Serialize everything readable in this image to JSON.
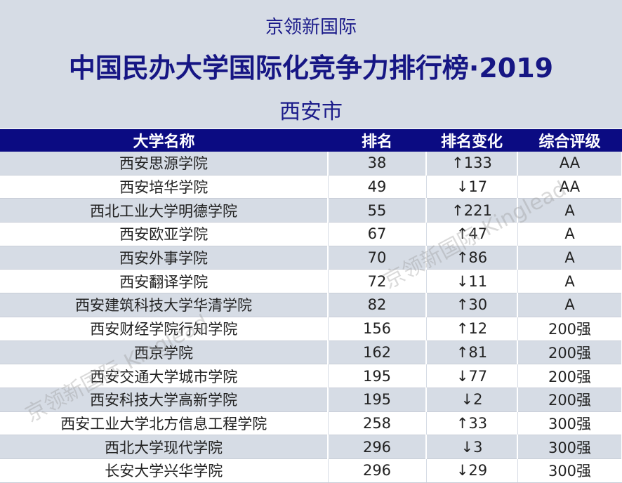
{
  "header": {
    "org": "京领新国际",
    "title": "中国民办大学国际化竞争力排行榜·2019",
    "city": "西安市"
  },
  "watermark": "京领新国际 Kinglead",
  "table": {
    "columns": [
      "大学名称",
      "排名",
      "排名变化",
      "综合评级"
    ],
    "rows": [
      [
        "西安思源学院",
        "38",
        "↑133",
        "AA"
      ],
      [
        "西安培华学院",
        "49",
        "↓17",
        "AA"
      ],
      [
        "西北工业大学明德学院",
        "55",
        "↑221",
        "A"
      ],
      [
        "西安欧亚学院",
        "67",
        "↑47",
        "A"
      ],
      [
        "西安外事学院",
        "70",
        "↑86",
        "A"
      ],
      [
        "西安翻译学院",
        "72",
        "↓11",
        "A"
      ],
      [
        "西安建筑科技大学华清学院",
        "82",
        "↑30",
        "A"
      ],
      [
        "西安财经学院行知学院",
        "156",
        "↑12",
        "200强"
      ],
      [
        "西京学院",
        "162",
        "↑81",
        "200强"
      ],
      [
        "西安交通大学城市学院",
        "195",
        "↓77",
        "200强"
      ],
      [
        "西安科技大学高新学院",
        "195",
        "↓2",
        "200强"
      ],
      [
        "西安工业大学北方信息工程学院",
        "258",
        "↑33",
        "300强"
      ],
      [
        "西北大学现代学院",
        "296",
        "↓3",
        "300强"
      ],
      [
        "长安大学兴华学院",
        "296",
        "↓29",
        "300强"
      ]
    ]
  }
}
